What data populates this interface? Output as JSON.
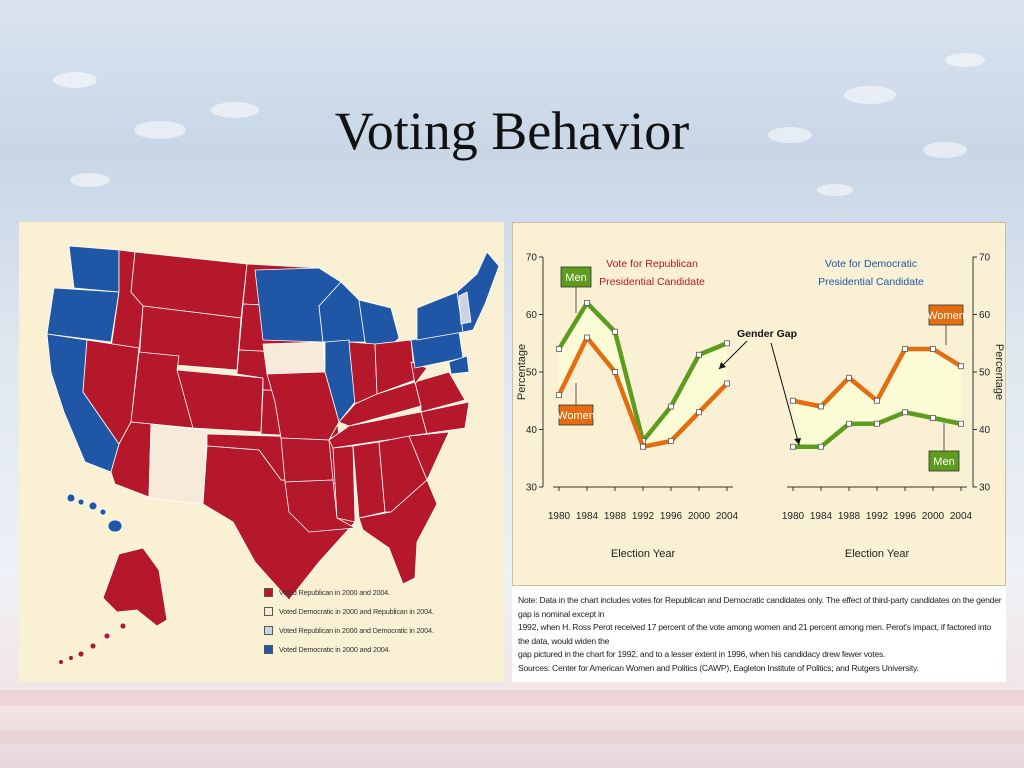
{
  "slide": {
    "title": "Voting Behavior"
  },
  "colors": {
    "republican": "#b5172b",
    "democratic": "#1f57a6",
    "rep_then_dem": "#c9d4e6",
    "dem_then_rep": "#f6ead8",
    "men": "#5e9c1f",
    "women": "#e36d10",
    "gap_fill": "#fbfbd6"
  },
  "map": {
    "legend": [
      {
        "label": "Voted Republican in 2000 and 2004.",
        "color": "#b5172b"
      },
      {
        "label": "Voted Democratic in 2000 and Republican in 2004.",
        "color": "#f6ead8"
      },
      {
        "label": "Voted Republican in 2000 and Democratic in 2004.",
        "color": "#c9d4e6"
      },
      {
        "label": "Voted Democratic in 2000 and 2004.",
        "color": "#1f57a6"
      }
    ]
  },
  "chart_data": [
    {
      "type": "line",
      "title": "Vote for Republican Presidential Candidate",
      "xlabel": "Election Year",
      "ylabel": "Percentage",
      "ylim": [
        30,
        70
      ],
      "yticks": [
        30,
        40,
        50,
        60,
        70
      ],
      "x": [
        1980,
        1984,
        1988,
        1992,
        1996,
        2000,
        2004
      ],
      "series": [
        {
          "name": "Men",
          "values": [
            54,
            62,
            57,
            38,
            44,
            53,
            55
          ]
        },
        {
          "name": "Women",
          "values": [
            46,
            56,
            50,
            37,
            38,
            43,
            48
          ]
        }
      ]
    },
    {
      "type": "line",
      "title": "Vote for Democratic Presidential Candidate",
      "xlabel": "Election Year",
      "ylabel": "Percentage",
      "ylim": [
        30,
        70
      ],
      "yticks": [
        30,
        40,
        50,
        60,
        70
      ],
      "x": [
        1980,
        1984,
        1988,
        1992,
        1996,
        2000,
        2004
      ],
      "series": [
        {
          "name": "Women",
          "values": [
            45,
            44,
            49,
            45,
            54,
            54,
            51
          ]
        },
        {
          "name": "Men",
          "values": [
            37,
            37,
            41,
            41,
            43,
            42,
            41
          ]
        }
      ]
    }
  ],
  "annotation": {
    "gender_gap": "Gender Gap"
  },
  "chart_labels": {
    "rep_title_1": "Vote for Republican",
    "rep_title_2": "Presidential Candidate",
    "dem_title_1": "Vote for Democratic",
    "dem_title_2": "Presidential Candidate"
  },
  "note": {
    "line1": "Note: Data in the chart includes votes for Republican and Democratic candidates only. The effect of third-party candidates on the gender gap is nominal except in",
    "line2": "1992, when H. Ross Perot received 17 percent of the vote among women and 21 percent among men. Perot's impact, if factored into the data, would widen the",
    "line3": "gap pictured in the chart for 1992, and to a lesser extent in 1996, when his candidacy drew fewer votes.",
    "sources": "Sources: Center for American Women and Politics (CAWP), Eagleton Institute of Politics; and Rutgers University."
  }
}
